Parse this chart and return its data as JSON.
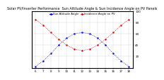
{
  "title": "Solar PV/Inverter Performance  Sun Altitude Angle & Sun Incidence Angle on PV Panels",
  "background_color": "#ffffff",
  "grid_color": "#aaaaaa",
  "blue_color": "#0000dd",
  "red_color": "#dd0000",
  "x": [
    6,
    7,
    8,
    9,
    10,
    11,
    12,
    13,
    14,
    15,
    16,
    17,
    18
  ],
  "altitude": [
    2,
    12,
    25,
    40,
    52,
    60,
    62,
    60,
    52,
    40,
    25,
    12,
    2
  ],
  "incidence": [
    85,
    75,
    62,
    50,
    40,
    33,
    30,
    33,
    40,
    50,
    62,
    75,
    85
  ],
  "ylim": [
    0,
    100
  ],
  "xlim": [
    5.5,
    18.5
  ],
  "yticks": [
    20,
    40,
    60,
    80,
    100
  ],
  "xticks": [
    6,
    7,
    8,
    9,
    10,
    11,
    12,
    13,
    14,
    15,
    16,
    17,
    18
  ],
  "title_fontsize": 3.5,
  "tick_fontsize": 3.0,
  "legend_entries": [
    "Sun Altitude Angle",
    "Incidence Angle on PV"
  ],
  "legend_colors": [
    "#0000dd",
    "#dd0000"
  ],
  "markersize": 1.5,
  "linewidth": 0.6
}
